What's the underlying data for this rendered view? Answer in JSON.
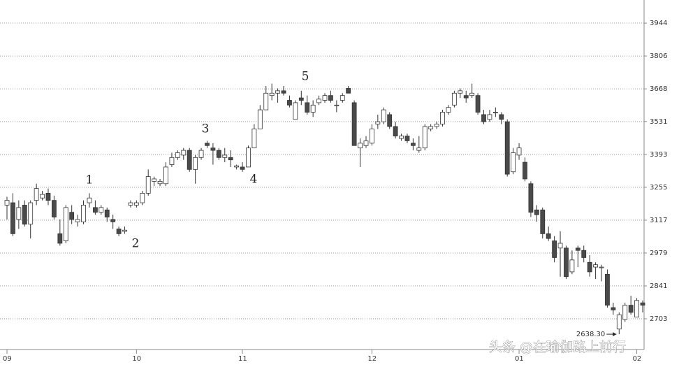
{
  "chart_data": {
    "type": "candlestick",
    "up_color": "#ffffff",
    "down_color": "#4a4a4a",
    "edge_color": "#333333",
    "ylim": [
      2574,
      4041
    ],
    "yticks": [
      2703,
      2841,
      2979,
      3117,
      3255,
      3393,
      3531,
      3668,
      3806,
      3944
    ],
    "grid": true,
    "categories": [
      "09",
      null,
      null,
      null,
      null,
      null,
      null,
      null,
      null,
      null,
      null,
      null,
      null,
      null,
      null,
      null,
      null,
      null,
      null,
      null,
      null,
      null,
      "10",
      null,
      null,
      null,
      null,
      null,
      null,
      null,
      null,
      null,
      null,
      null,
      null,
      null,
      null,
      null,
      null,
      null,
      "11",
      null,
      null,
      null,
      null,
      null,
      null,
      null,
      null,
      null,
      null,
      null,
      null,
      null,
      null,
      null,
      null,
      null,
      null,
      null,
      null,
      null,
      "12",
      null,
      null,
      null,
      null,
      null,
      null,
      null,
      null,
      null,
      null,
      null,
      null,
      null,
      null,
      null,
      null,
      null,
      null,
      null,
      null,
      null,
      null,
      null,
      null,
      "01",
      null,
      null,
      null,
      null,
      null,
      null,
      null,
      null,
      null,
      null,
      null,
      null,
      null,
      null,
      null,
      null,
      null,
      null,
      null,
      "02",
      null
    ],
    "candles": [
      [
        3180,
        3215,
        3120,
        3200
      ],
      [
        3190,
        3230,
        3050,
        3060
      ],
      [
        3120,
        3200,
        3080,
        3170
      ],
      [
        3180,
        3200,
        3090,
        3100
      ],
      [
        3100,
        3200,
        3040,
        3190
      ],
      [
        3200,
        3270,
        3180,
        3250
      ],
      [
        3210,
        3240,
        3200,
        3225
      ],
      [
        3230,
        3250,
        3180,
        3200
      ],
      [
        3200,
        3220,
        3120,
        3130
      ],
      [
        3060,
        3120,
        3010,
        3020
      ],
      [
        3030,
        3180,
        3020,
        3170
      ],
      [
        3150,
        3180,
        3100,
        3120
      ],
      [
        3110,
        3140,
        3090,
        3120
      ],
      [
        3110,
        3200,
        3100,
        3180
      ],
      [
        3190,
        3230,
        3170,
        3210
      ],
      [
        3170,
        3200,
        3140,
        3150
      ],
      [
        3150,
        3180,
        3140,
        3170
      ],
      [
        3160,
        3170,
        3110,
        3130
      ],
      [
        3120,
        3140,
        3080,
        3110
      ],
      [
        3080,
        3090,
        3050,
        3060
      ],
      [
        3070,
        3090,
        3060,
        3075
      ],
      [
        3180,
        3200,
        3170,
        3190
      ],
      [
        3180,
        3200,
        3170,
        3190
      ],
      [
        3190,
        3240,
        3180,
        3230
      ],
      [
        3230,
        3330,
        3220,
        3300
      ],
      [
        3280,
        3300,
        3260,
        3290
      ],
      [
        3270,
        3290,
        3260,
        3280
      ],
      [
        3270,
        3360,
        3260,
        3340
      ],
      [
        3350,
        3400,
        3340,
        3380
      ],
      [
        3380,
        3410,
        3370,
        3400
      ],
      [
        3390,
        3420,
        3370,
        3410
      ],
      [
        3410,
        3420,
        3320,
        3330
      ],
      [
        3330,
        3390,
        3270,
        3380
      ],
      [
        3380,
        3420,
        3370,
        3410
      ],
      [
        3440,
        3450,
        3420,
        3430
      ],
      [
        3420,
        3440,
        3350,
        3410
      ],
      [
        3410,
        3420,
        3370,
        3380
      ],
      [
        3380,
        3420,
        3360,
        3390
      ],
      [
        3380,
        3410,
        3340,
        3370
      ],
      [
        3340,
        3350,
        3330,
        3345
      ],
      [
        3340,
        3360,
        3320,
        3330
      ],
      [
        3340,
        3430,
        3340,
        3420
      ],
      [
        3420,
        3520,
        3420,
        3500
      ],
      [
        3500,
        3600,
        3500,
        3580
      ],
      [
        3580,
        3680,
        3580,
        3650
      ],
      [
        3640,
        3690,
        3620,
        3650
      ],
      [
        3650,
        3670,
        3610,
        3660
      ],
      [
        3660,
        3680,
        3640,
        3650
      ],
      [
        3620,
        3640,
        3590,
        3600
      ],
      [
        3540,
        3620,
        3540,
        3610
      ],
      [
        3630,
        3660,
        3600,
        3620
      ],
      [
        3610,
        3640,
        3560,
        3570
      ],
      [
        3570,
        3620,
        3550,
        3600
      ],
      [
        3610,
        3640,
        3600,
        3625
      ],
      [
        3620,
        3650,
        3610,
        3640
      ],
      [
        3640,
        3660,
        3610,
        3620
      ],
      [
        3600,
        3620,
        3570,
        3600
      ],
      [
        3620,
        3650,
        3610,
        3640
      ],
      [
        3670,
        3680,
        3650,
        3650
      ],
      [
        3610,
        3620,
        3430,
        3430
      ],
      [
        3420,
        3460,
        3340,
        3440
      ],
      [
        3430,
        3470,
        3420,
        3450
      ],
      [
        3440,
        3520,
        3430,
        3500
      ],
      [
        3520,
        3560,
        3500,
        3530
      ],
      [
        3530,
        3590,
        3520,
        3580
      ],
      [
        3560,
        3570,
        3500,
        3510
      ],
      [
        3510,
        3530,
        3460,
        3470
      ],
      [
        3460,
        3480,
        3450,
        3470
      ],
      [
        3470,
        3480,
        3440,
        3450
      ],
      [
        3440,
        3460,
        3410,
        3430
      ],
      [
        3410,
        3470,
        3400,
        3420
      ],
      [
        3420,
        3520,
        3410,
        3510
      ],
      [
        3500,
        3520,
        3490,
        3510
      ],
      [
        3510,
        3530,
        3500,
        3520
      ],
      [
        3520,
        3580,
        3510,
        3570
      ],
      [
        3570,
        3600,
        3560,
        3590
      ],
      [
        3600,
        3660,
        3590,
        3650
      ],
      [
        3650,
        3670,
        3630,
        3660
      ],
      [
        3640,
        3660,
        3610,
        3630
      ],
      [
        3640,
        3690,
        3630,
        3650
      ],
      [
        3640,
        3650,
        3560,
        3570
      ],
      [
        3560,
        3580,
        3520,
        3530
      ],
      [
        3540,
        3580,
        3530,
        3560
      ],
      [
        3570,
        3590,
        3550,
        3570
      ],
      [
        3560,
        3570,
        3520,
        3540
      ],
      [
        3530,
        3540,
        3300,
        3310
      ],
      [
        3320,
        3420,
        3310,
        3400
      ],
      [
        3390,
        3440,
        3370,
        3420
      ],
      [
        3360,
        3380,
        3280,
        3290
      ],
      [
        3270,
        3280,
        3130,
        3150
      ],
      [
        3160,
        3180,
        3110,
        3140
      ],
      [
        3160,
        3170,
        3040,
        3060
      ],
      [
        3060,
        3090,
        3030,
        3040
      ],
      [
        3030,
        3050,
        2940,
        2960
      ],
      [
        3000,
        3070,
        2880,
        3020
      ],
      [
        3000,
        3010,
        2870,
        2880
      ],
      [
        2900,
        2990,
        2890,
        2950
      ],
      [
        3000,
        3010,
        2920,
        2990
      ],
      [
        2990,
        3010,
        2940,
        2960
      ],
      [
        2940,
        2970,
        2880,
        2900
      ],
      [
        2920,
        2940,
        2870,
        2930
      ],
      [
        2920,
        2930,
        2860,
        2920
      ],
      [
        2890,
        2910,
        2750,
        2760
      ],
      [
        2750,
        2770,
        2720,
        2740
      ],
      [
        2660,
        2730,
        2638.3,
        2720
      ],
      [
        2700,
        2770,
        2690,
        2760
      ],
      [
        2760,
        2800,
        2720,
        2730
      ],
      [
        2710,
        2790,
        2710,
        2780
      ],
      [
        2770,
        2780,
        2730,
        2760
      ]
    ],
    "low_label": {
      "value": 2638.3,
      "label": "2638.30"
    },
    "annotations": [
      "1",
      "2",
      "3",
      "4",
      "5"
    ],
    "watermark": "头条 @在瑜伽路上前行"
  }
}
